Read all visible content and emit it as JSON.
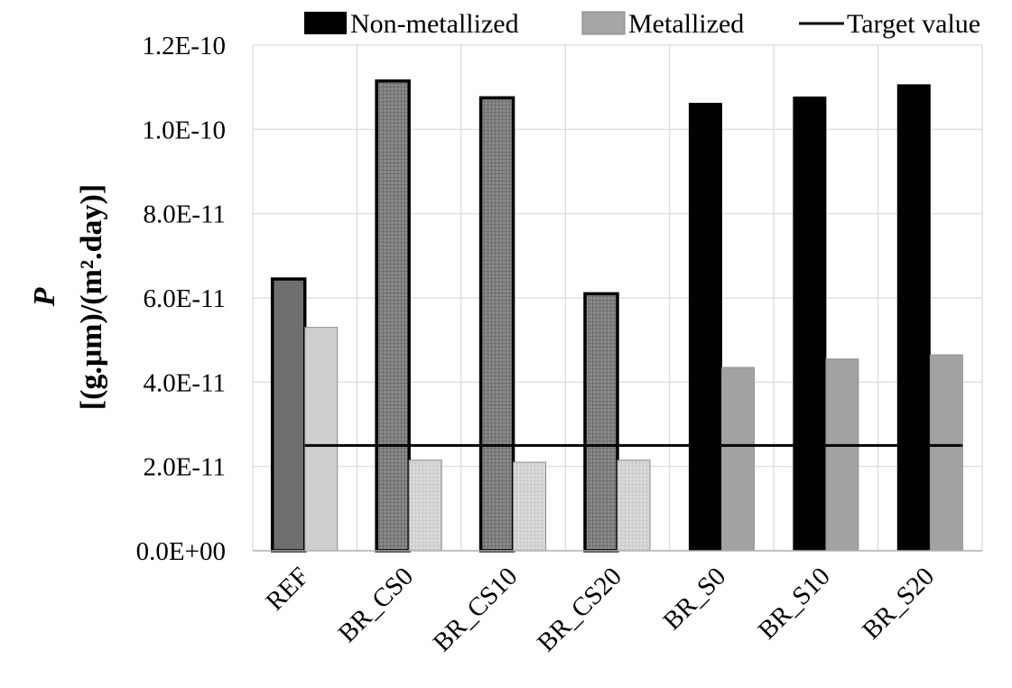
{
  "chart_data": {
    "type": "bar",
    "ylabel": "P",
    "ylabel_unit": "[(g.μm)/(m².day)]",
    "categories": [
      "REF",
      "BR_CS0",
      "BR_CS10",
      "BR_CS20",
      "BR_S0",
      "BR_S10",
      "BR_S20"
    ],
    "series": [
      {
        "name": "Non-metallized",
        "values": [
          6.45e-11,
          1.115e-10,
          1.075e-10,
          6.1e-11,
          1.062e-10,
          1.077e-10,
          1.106e-10
        ],
        "color": "#000000"
      },
      {
        "name": "Metallized",
        "values": [
          5.3e-11,
          2.15e-11,
          2.1e-11,
          2.15e-11,
          4.35e-11,
          4.55e-11,
          4.65e-11
        ],
        "color": "#a6a6a6"
      },
      {
        "name": "Target value",
        "type": "line",
        "value": 2.5e-11,
        "color": "#000000"
      }
    ],
    "bar_styles": [
      {
        "nonmet": "#6f6f6f",
        "met": "#cfcfcf"
      },
      {
        "nonmet": "#8a8a8a",
        "met": "#d8d8d8"
      },
      {
        "nonmet": "#8a8a8a",
        "met": "#d8d8d8"
      },
      {
        "nonmet": "#8a8a8a",
        "met": "#d8d8d8"
      },
      {
        "nonmet": "#000000",
        "met": "#a3a3a3"
      },
      {
        "nonmet": "#000000",
        "met": "#a3a3a3"
      },
      {
        "nonmet": "#000000",
        "met": "#a3a3a3"
      }
    ],
    "ylim": [
      0,
      1.2e-10
    ],
    "yticks": [
      0,
      2e-11,
      4e-11,
      6e-11,
      8e-11,
      1e-10,
      1.2e-10
    ],
    "ytick_labels": [
      "0.0E+00",
      "2.0E-11",
      "4.0E-11",
      "6.0E-11",
      "8.0E-11",
      "1.0E-10",
      "1.2E-10"
    ],
    "grid": true,
    "legend_position": "top"
  }
}
